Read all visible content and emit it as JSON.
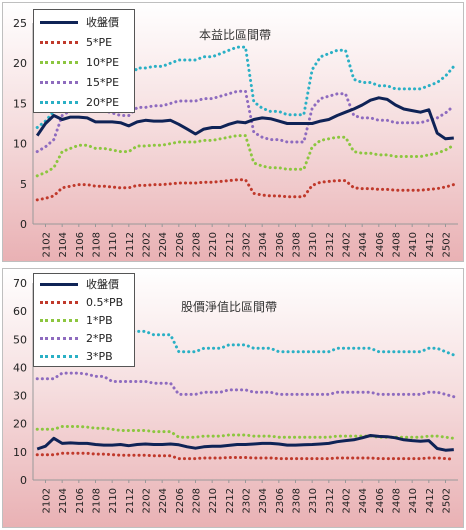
{
  "chart_data": [
    {
      "type": "line",
      "title": "本益比區間帶",
      "ylim": [
        0,
        25
      ],
      "yticks": [
        0,
        5,
        10,
        15,
        20,
        25
      ],
      "grid": false,
      "legend_position": "top-left",
      "x": [
        "2101",
        "2102",
        "2103",
        "2104",
        "2105",
        "2106",
        "2107",
        "2108",
        "2109",
        "2110",
        "2111",
        "2112",
        "2201",
        "2202",
        "2203",
        "2204",
        "2205",
        "2206",
        "2207",
        "2208",
        "2209",
        "2210",
        "2211",
        "2212",
        "2301",
        "2302",
        "2303",
        "2304",
        "2305",
        "2306",
        "2307",
        "2308",
        "2309",
        "2310",
        "2311",
        "2312",
        "2401",
        "2402",
        "2403",
        "2404",
        "2405",
        "2406",
        "2407",
        "2408",
        "2409",
        "2410",
        "2411",
        "2412",
        "2501",
        "2502",
        "2503"
      ],
      "xtick_labels": [
        "2102",
        "2104",
        "2106",
        "2108",
        "2110",
        "2112",
        "2202",
        "2204",
        "2206",
        "2208",
        "2210",
        "2212",
        "2302",
        "2304",
        "2306",
        "2308",
        "2310",
        "2312",
        "2402",
        "2404",
        "2406",
        "2408",
        "2410",
        "2412",
        "2502"
      ],
      "series": [
        {
          "name": "收盤價",
          "color": "#0f2356",
          "style": "solid",
          "values": [
            11,
            12.5,
            13.5,
            13,
            13.3,
            13.3,
            13.2,
            12.7,
            12.7,
            12.7,
            12.6,
            12.2,
            12.7,
            12.9,
            12.8,
            12.8,
            12.9,
            12.4,
            11.8,
            11.2,
            11.8,
            12,
            12,
            12.4,
            12.7,
            12.6,
            13,
            13.2,
            13.1,
            12.8,
            12.5,
            12.5,
            12.5,
            12.5,
            12.8,
            13,
            13.5,
            13.9,
            14.3,
            14.8,
            15.4,
            15.7,
            15.5,
            14.8,
            14.3,
            14.1,
            13.9,
            14.2,
            11.3,
            10.6,
            10.7
          ]
        },
        {
          "name": "5*PE",
          "color": "#c0392b",
          "style": "dotted",
          "values": [
            3,
            3.2,
            3.5,
            4.5,
            4.7,
            4.9,
            4.9,
            4.7,
            4.7,
            4.6,
            4.5,
            4.5,
            4.8,
            4.8,
            4.9,
            4.9,
            5,
            5.1,
            5.1,
            5.1,
            5.2,
            5.2,
            5.3,
            5.4,
            5.5,
            5.5,
            3.8,
            3.6,
            3.5,
            3.5,
            3.4,
            3.4,
            3.4,
            4.8,
            5.2,
            5.3,
            5.4,
            5.4,
            4.5,
            4.4,
            4.4,
            4.3,
            4.3,
            4.2,
            4.2,
            4.2,
            4.2,
            4.3,
            4.4,
            4.6,
            4.9
          ]
        },
        {
          "name": "10*PE",
          "color": "#8cc63f",
          "style": "dotted",
          "values": [
            6,
            6.4,
            7,
            9,
            9.4,
            9.8,
            9.8,
            9.4,
            9.4,
            9.2,
            9,
            9,
            9.7,
            9.7,
            9.8,
            9.8,
            10,
            10.2,
            10.2,
            10.2,
            10.4,
            10.4,
            10.6,
            10.8,
            11,
            11,
            7.6,
            7.2,
            7,
            7,
            6.8,
            6.8,
            6.8,
            9.6,
            10.4,
            10.6,
            10.8,
            10.8,
            9,
            8.8,
            8.8,
            8.6,
            8.6,
            8.4,
            8.4,
            8.4,
            8.4,
            8.6,
            8.8,
            9.2,
            9.8
          ]
        },
        {
          "name": "15*PE",
          "color": "#8e6bbf",
          "style": "dotted",
          "values": [
            9,
            9.6,
            10.5,
            13.5,
            14.1,
            14.7,
            14.7,
            14.1,
            14.1,
            13.8,
            13.5,
            13.5,
            14.5,
            14.5,
            14.7,
            14.7,
            15,
            15.3,
            15.3,
            15.3,
            15.6,
            15.6,
            15.9,
            16.2,
            16.5,
            16.5,
            11.4,
            10.8,
            10.5,
            10.5,
            10.2,
            10.2,
            10.2,
            14.4,
            15.6,
            15.9,
            16.2,
            16.2,
            13.5,
            13.2,
            13.2,
            12.9,
            12.9,
            12.6,
            12.6,
            12.6,
            12.6,
            12.9,
            13.2,
            13.8,
            14.7
          ]
        },
        {
          "name": "20*PE",
          "color": "#2ab0c5",
          "style": "dotted",
          "values": [
            12,
            12.8,
            14,
            18,
            18.8,
            19.6,
            19.6,
            18.8,
            18.8,
            18.4,
            18,
            18,
            19.4,
            19.4,
            19.6,
            19.6,
            20,
            20.4,
            20.4,
            20.4,
            20.8,
            20.8,
            21.2,
            21.6,
            22,
            22,
            15.2,
            14.4,
            14,
            14,
            13.6,
            13.6,
            13.6,
            19.2,
            20.8,
            21.2,
            21.6,
            21.6,
            18,
            17.6,
            17.6,
            17.2,
            17.2,
            16.8,
            16.8,
            16.8,
            16.8,
            17.2,
            17.6,
            18.4,
            19.6
          ]
        }
      ]
    },
    {
      "type": "line",
      "title": "股價淨值比區間帶",
      "ylim": [
        0,
        70
      ],
      "yticks": [
        0,
        10,
        20,
        30,
        40,
        50,
        60,
        70
      ],
      "grid": false,
      "legend_position": "top-left",
      "x": [
        "2101",
        "2102",
        "2103",
        "2104",
        "2105",
        "2106",
        "2107",
        "2108",
        "2109",
        "2110",
        "2111",
        "2112",
        "2201",
        "2202",
        "2203",
        "2204",
        "2205",
        "2206",
        "2207",
        "2208",
        "2209",
        "2210",
        "2211",
        "2212",
        "2301",
        "2302",
        "2303",
        "2304",
        "2305",
        "2306",
        "2307",
        "2308",
        "2309",
        "2310",
        "2311",
        "2312",
        "2401",
        "2402",
        "2403",
        "2404",
        "2405",
        "2406",
        "2407",
        "2408",
        "2409",
        "2410",
        "2411",
        "2412",
        "2501",
        "2502",
        "2503"
      ],
      "xtick_labels": [
        "2102",
        "2104",
        "2106",
        "2108",
        "2110",
        "2112",
        "2202",
        "2204",
        "2206",
        "2208",
        "2210",
        "2212",
        "2302",
        "2304",
        "2306",
        "2308",
        "2310",
        "2312",
        "2402",
        "2404",
        "2406",
        "2408",
        "2410",
        "2412",
        "2502"
      ],
      "series": [
        {
          "name": "收盤價",
          "color": "#0f2356",
          "style": "solid",
          "values": [
            11,
            12,
            14.8,
            13,
            13.2,
            13,
            13,
            12.6,
            12.4,
            12.4,
            12.6,
            12.2,
            12.6,
            12.8,
            12.6,
            12.6,
            12.8,
            12.5,
            11.8,
            11.3,
            11.8,
            12,
            12,
            12.3,
            12.6,
            12.6,
            12.8,
            13,
            13,
            12.8,
            12.4,
            12.4,
            12.5,
            12.6,
            12.8,
            13,
            13.6,
            14,
            14.3,
            15,
            15.8,
            15.5,
            15.4,
            15,
            14.3,
            14,
            13.8,
            14,
            11.2,
            10.6,
            10.8
          ]
        },
        {
          "name": "0.5*PB",
          "color": "#c0392b",
          "style": "dotted",
          "values": [
            9,
            9,
            9,
            9.5,
            9.5,
            9.5,
            9.5,
            9.2,
            9.2,
            9,
            8.8,
            8.8,
            8.8,
            8.8,
            8.6,
            8.6,
            8.6,
            7.6,
            7.6,
            7.6,
            7.8,
            7.8,
            7.8,
            8,
            8,
            8,
            7.8,
            7.8,
            7.8,
            7.6,
            7.6,
            7.6,
            7.6,
            7.6,
            7.6,
            7.6,
            7.8,
            7.8,
            7.8,
            7.8,
            7.8,
            7.6,
            7.6,
            7.6,
            7.6,
            7.6,
            7.6,
            7.8,
            7.8,
            7.6,
            7.4
          ]
        },
        {
          "name": "1*PB",
          "color": "#8cc63f",
          "style": "dotted",
          "values": [
            18,
            18,
            18,
            19,
            19,
            19,
            18.8,
            18.4,
            18.4,
            18,
            17.6,
            17.6,
            17.6,
            17.6,
            17.2,
            17.2,
            17.2,
            15.2,
            15.2,
            15.2,
            15.6,
            15.6,
            15.6,
            16,
            16,
            16,
            15.6,
            15.6,
            15.6,
            15.2,
            15.2,
            15.2,
            15.2,
            15.2,
            15.2,
            15.2,
            15.6,
            15.6,
            15.6,
            15.6,
            15.6,
            15.2,
            15.2,
            15.2,
            15.2,
            15.2,
            15.2,
            15.6,
            15.6,
            15.2,
            14.8
          ]
        },
        {
          "name": "2*PB",
          "color": "#8e6bbf",
          "style": "dotted",
          "values": [
            36,
            36,
            36,
            38,
            38,
            38,
            37.6,
            36.8,
            36.8,
            35,
            35,
            35,
            35,
            35,
            34.4,
            34.4,
            34.4,
            30.4,
            30.4,
            30.4,
            31.2,
            31.2,
            31.2,
            32,
            32,
            32,
            31.2,
            31.2,
            31.2,
            30.4,
            30.4,
            30.4,
            30.4,
            30.4,
            30.4,
            30.4,
            31.2,
            31.2,
            31.2,
            31.2,
            31.2,
            30.4,
            30.4,
            30.4,
            30.4,
            30.4,
            30.4,
            31.2,
            31.2,
            30.4,
            29.6
          ]
        },
        {
          "name": "3*PB",
          "color": "#2ab0c5",
          "style": "dotted",
          "values": [
            54,
            54,
            54,
            57,
            57,
            57,
            56.4,
            55.2,
            55.2,
            54,
            52.8,
            52.8,
            52.8,
            52.8,
            51.6,
            51.6,
            51.6,
            45.6,
            45.6,
            45.6,
            46.8,
            46.8,
            46.8,
            48,
            48,
            48,
            46.8,
            46.8,
            46.8,
            45.6,
            45.6,
            45.6,
            45.6,
            45.6,
            45.6,
            45.6,
            46.8,
            46.8,
            46.8,
            46.8,
            46.8,
            45.6,
            45.6,
            45.6,
            45.6,
            45.6,
            45.6,
            46.8,
            46.8,
            45.6,
            44.4
          ]
        }
      ]
    }
  ]
}
